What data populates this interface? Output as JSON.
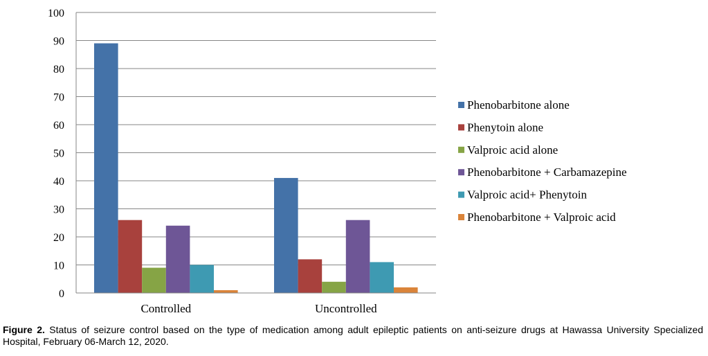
{
  "chart_data": {
    "type": "bar",
    "categories": [
      "Controlled",
      "Uncontrolled"
    ],
    "series": [
      {
        "name": "Phenobarbitone alone",
        "color": "#4472A8",
        "values": [
          89,
          41
        ]
      },
      {
        "name": "Phenytoin alone",
        "color": "#A8413D",
        "values": [
          26,
          12
        ]
      },
      {
        "name": "Valproic acid alone",
        "color": "#86A445",
        "values": [
          9,
          4
        ]
      },
      {
        "name": "Phenobarbitone + Carbamazepine",
        "color": "#6E5696",
        "values": [
          24,
          26
        ]
      },
      {
        "name": "Valproic acid+ Phenytoin",
        "color": "#3E9AB2",
        "values": [
          10,
          11
        ]
      },
      {
        "name": "Phenobarbitone + Valproic acid",
        "color": "#DA843A",
        "values": [
          1,
          2
        ]
      }
    ],
    "ylim": [
      0,
      100
    ],
    "yticks": [
      0,
      10,
      20,
      30,
      40,
      50,
      60,
      70,
      80,
      90,
      100
    ],
    "grid": true,
    "legend": "right"
  },
  "caption": {
    "label": "Figure 2.",
    "text": " Status of seizure control based on the type of medication among adult epileptic patients on anti-seizure drugs at Hawassa University Specialized Hospital, February 06-March 12, 2020."
  }
}
